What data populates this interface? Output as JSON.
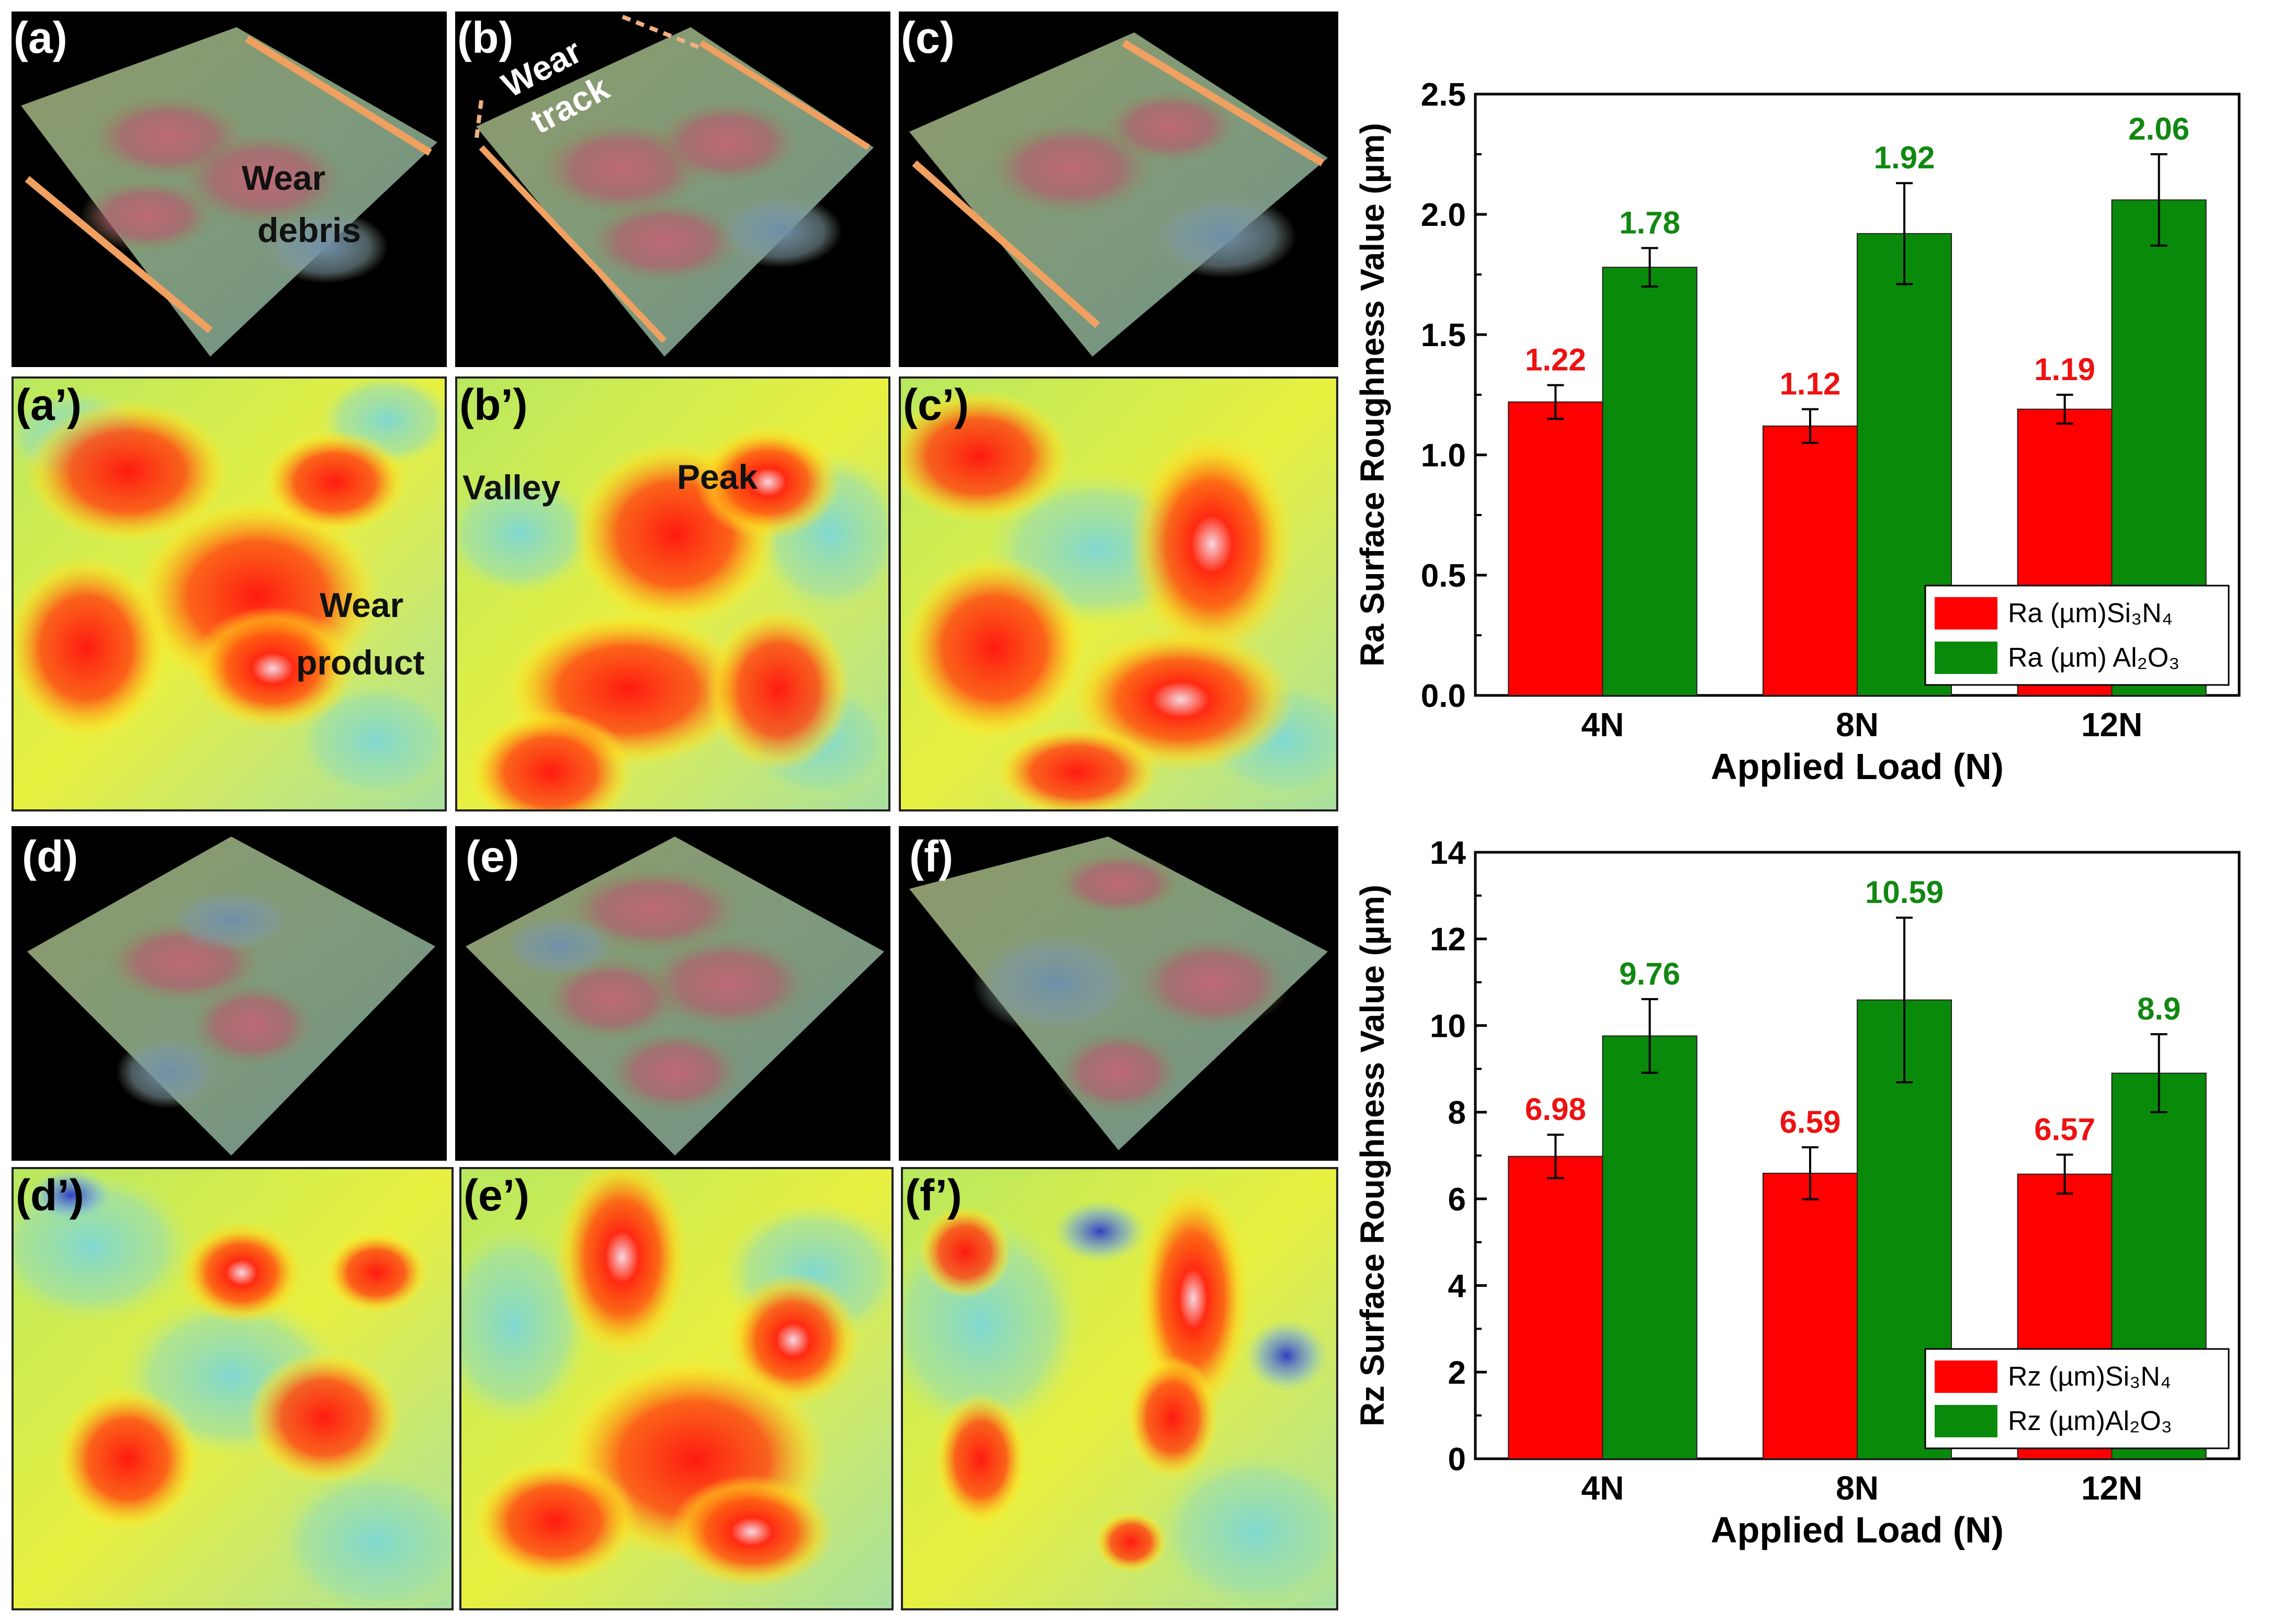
{
  "panels_3d": [
    {
      "id": "a",
      "label": "(a)"
    },
    {
      "id": "b",
      "label": "(b)"
    },
    {
      "id": "c",
      "label": "(c)"
    },
    {
      "id": "d",
      "label": "(d)"
    },
    {
      "id": "e",
      "label": "(e)"
    },
    {
      "id": "f",
      "label": "(f)"
    }
  ],
  "panels_map": [
    {
      "id": "a2",
      "label": "(a’)"
    },
    {
      "id": "b2",
      "label": "(b’)"
    },
    {
      "id": "c2",
      "label": "(c’)"
    },
    {
      "id": "d2",
      "label": "(d’)"
    },
    {
      "id": "e2",
      "label": "(e’)"
    },
    {
      "id": "f2",
      "label": "(f’)"
    }
  ],
  "annotations": {
    "wear_debris_1": "Wear",
    "wear_debris_2": "debris",
    "wear_track_1": "Wear",
    "wear_track_2": "track",
    "valley": "Valley",
    "peak": "Peak",
    "wear_product_1": "Wear",
    "wear_product_2": "product"
  },
  "colors": {
    "si3n4": "#ff0000",
    "al2o3": "#0a8a0a",
    "si3n4_label": "#ee1111",
    "al2o3_label": "#118811"
  },
  "chart_data": [
    {
      "type": "bar",
      "title": "",
      "xlabel": "Applied Load (N)",
      "ylabel": "Ra Surface Roughness Value (µm)",
      "categories": [
        "4N",
        "8N",
        "12N"
      ],
      "ylim": [
        0,
        2.5
      ],
      "yticks": [
        "0.0",
        "0.5",
        "1.0",
        "1.5",
        "2.0",
        "2.5"
      ],
      "series": [
        {
          "name": "Ra (µm)Si₃N₄",
          "values": [
            1.22,
            1.12,
            1.19
          ],
          "errors": [
            0.07,
            0.07,
            0.06
          ],
          "labels": [
            "1.22",
            "1.12",
            "1.19"
          ]
        },
        {
          "name": "Ra (µm) Al₂O₃",
          "values": [
            1.78,
            1.92,
            2.06
          ],
          "errors": [
            0.08,
            0.21,
            0.19
          ],
          "labels": [
            "1.78",
            "1.92",
            "2.06"
          ]
        }
      ],
      "legend": "bottom-right"
    },
    {
      "type": "bar",
      "title": "",
      "xlabel": "Applied Load (N)",
      "ylabel": "Rz Surface Roughness Value (µm)",
      "categories": [
        "4N",
        "8N",
        "12N"
      ],
      "ylim": [
        0,
        14
      ],
      "yticks": [
        "0",
        "2",
        "4",
        "6",
        "8",
        "10",
        "12",
        "14"
      ],
      "series": [
        {
          "name": "Rz (µm)Si₃N₄",
          "values": [
            6.98,
            6.59,
            6.57
          ],
          "errors": [
            0.5,
            0.6,
            0.45
          ],
          "labels": [
            "6.98",
            "6.59",
            "6.57"
          ]
        },
        {
          "name": "Rz (µm)Al₂O₃",
          "values": [
            9.76,
            10.59,
            8.9
          ],
          "errors": [
            0.85,
            1.9,
            0.9
          ],
          "labels": [
            "9.76",
            "10.59",
            "8.9"
          ]
        }
      ],
      "legend": "bottom-right"
    }
  ]
}
